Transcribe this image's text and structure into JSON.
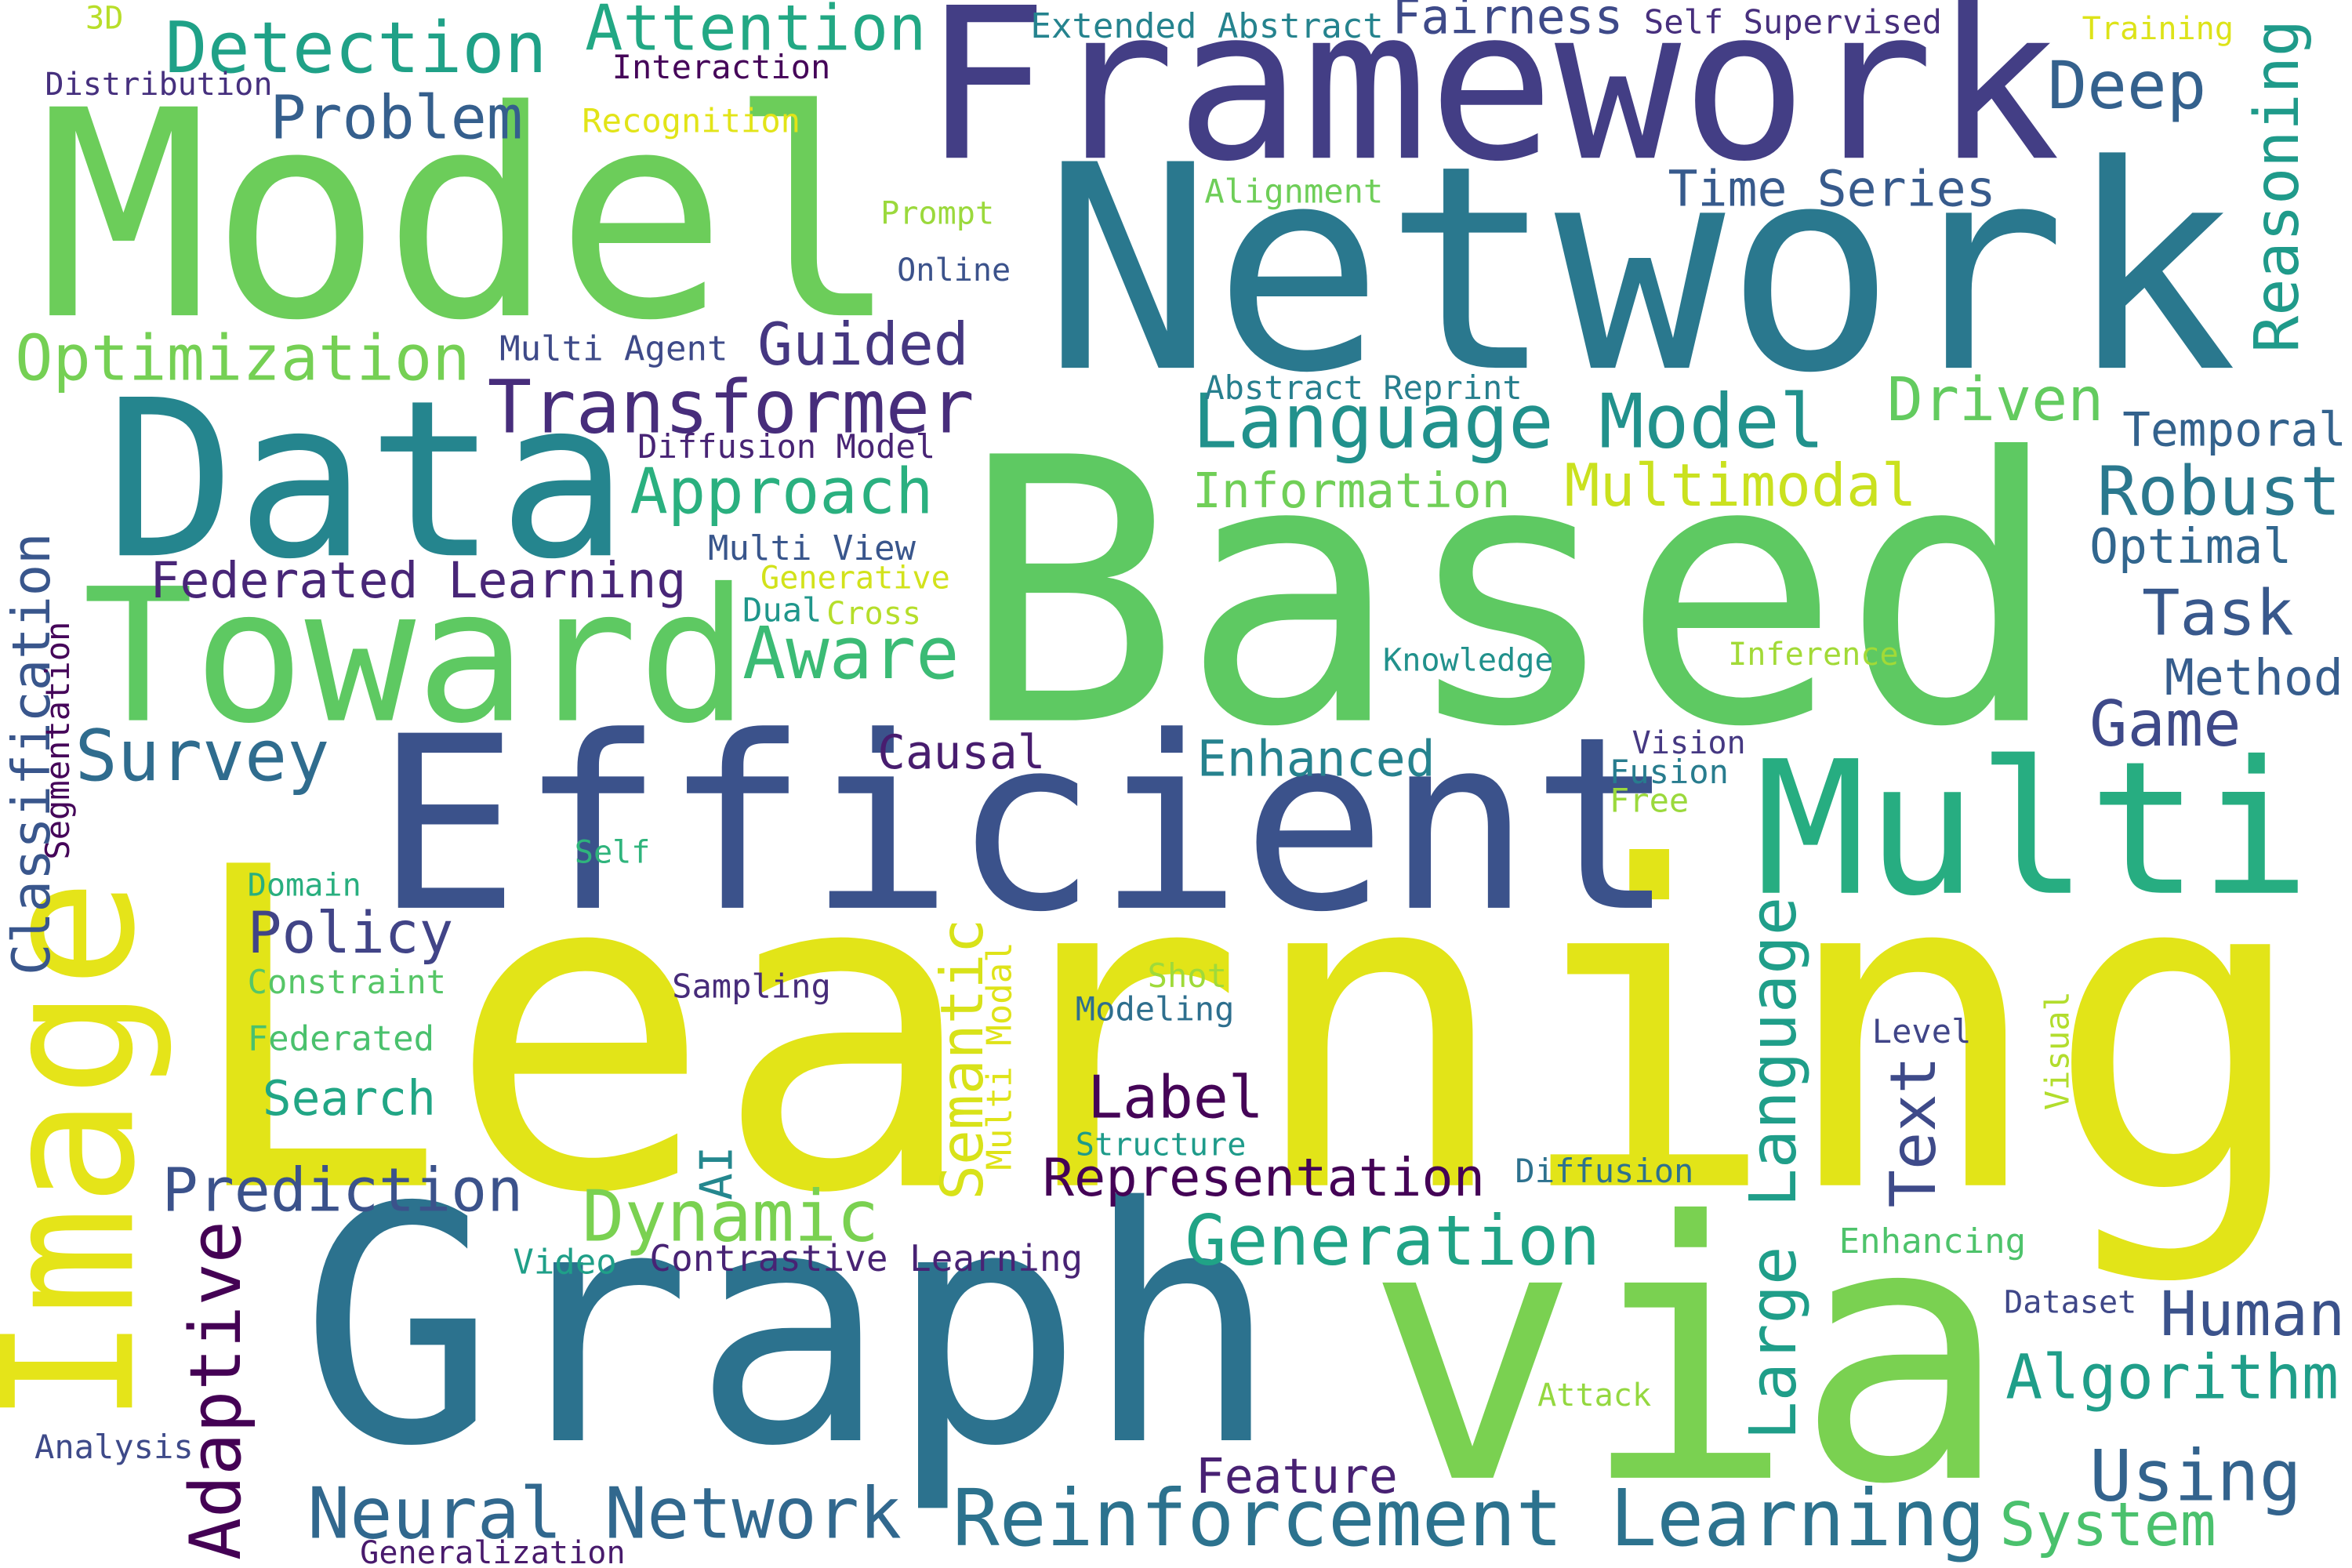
{
  "words": [
    "Learning",
    "Based",
    "Network",
    "Model",
    "Framework",
    "Graph",
    "via",
    "Efficient",
    "Data",
    "Toward",
    "Multi",
    "Image",
    "Reinforcement Learning",
    "Neural Network",
    "Language Model",
    "Transformer",
    "Detection",
    "Attention",
    "Problem",
    "Optimization",
    "Survey",
    "Federated Learning",
    "Approach",
    "Aware",
    "Guided",
    "Multi Agent",
    "Diffusion Model",
    "Multi View",
    "Generative",
    "Dual",
    "Cross",
    "Causal",
    "Policy",
    "Domain",
    "Constraint",
    "Federated",
    "Search",
    "Prediction",
    "Adaptive",
    "Dynamic",
    "Video",
    "Contrastive Learning",
    "AI",
    "Semantic",
    "Multi Modal",
    "Sampling",
    "Label",
    "Representation",
    "Structure",
    "Modeling",
    "Shot",
    "Generation",
    "Enhanced",
    "Information",
    "Multimodal",
    "Driven",
    "Abstract Reprint",
    "Alignment",
    "Time Series",
    "Deep",
    "Reasoning",
    "Temporal",
    "Robust",
    "Optimal",
    "Task",
    "Method",
    "Game",
    "Knowledge",
    "Inference",
    "Vision",
    "Fusion",
    "Free",
    "Self",
    "Large Language",
    "Text",
    "Level",
    "Visual",
    "Diffusion",
    "Enhancing",
    "Dataset",
    "Human",
    "Algorithm",
    "Using",
    "System",
    "Attack",
    "Feature",
    "Generalization",
    "Analysis",
    "Classification",
    "Segmentation",
    "Distribution",
    "3D",
    "Interaction",
    "Recognition",
    "Prompt",
    "Online",
    "Extended Abstract",
    "Fairness",
    "Self Supervised",
    "Training"
  ]
}
